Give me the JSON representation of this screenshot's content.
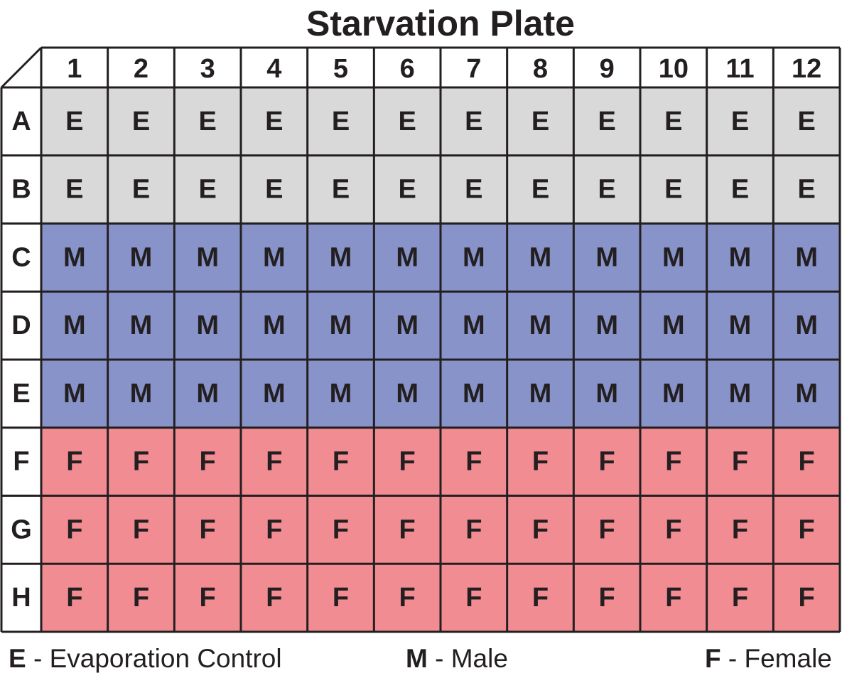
{
  "title": "Starvation Plate",
  "columns": [
    "1",
    "2",
    "3",
    "4",
    "5",
    "6",
    "7",
    "8",
    "9",
    "10",
    "11",
    "12"
  ],
  "rows": [
    {
      "label": "A",
      "code": "E"
    },
    {
      "label": "B",
      "code": "E"
    },
    {
      "label": "C",
      "code": "M"
    },
    {
      "label": "D",
      "code": "M"
    },
    {
      "label": "E",
      "code": "M"
    },
    {
      "label": "F",
      "code": "F"
    },
    {
      "label": "G",
      "code": "F"
    },
    {
      "label": "H",
      "code": "F"
    }
  ],
  "colors": {
    "E": "#d9d9d9",
    "M": "#8893c9",
    "F": "#f28c93",
    "grid": "#231f20",
    "text": "#231f20"
  },
  "legend": {
    "e": {
      "code": "E",
      "text": " - Evaporation Control"
    },
    "m": {
      "code": "M",
      "text": " - Male"
    },
    "f": {
      "code": "F",
      "text": " - Female"
    }
  }
}
